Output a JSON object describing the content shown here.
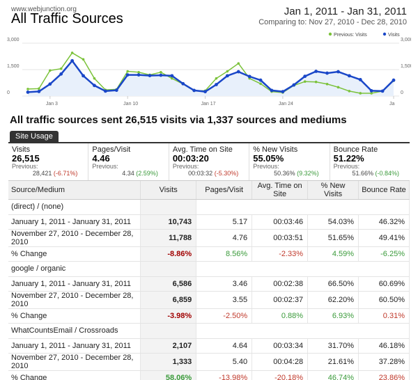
{
  "site": "www.webjunction.org",
  "title": "All Traffic Sources",
  "date_range": "Jan 1, 2011 - Jan 31, 2011",
  "compare": "Comparing to: Nov 27, 2010 - Dec 28, 2010",
  "colors": {
    "current": "#1a47c8",
    "previous": "#7bc23a",
    "negative": "#c0392b",
    "positive": "#3a9a3a"
  },
  "headline": "All traffic sources sent 26,515 visits via 1,337 sources and mediums",
  "tab": "Site Usage",
  "summary": [
    {
      "label": "Visits",
      "value": "26,515",
      "prev_label": "Previous:",
      "prev_value": "28,421",
      "change": "(-6.71%)",
      "change_sign": "neg"
    },
    {
      "label": "Pages/Visit",
      "value": "4.46",
      "prev_label": "Previous:",
      "prev_value": "4.34",
      "change": "(2.59%)",
      "change_sign": "pos"
    },
    {
      "label": "Avg. Time on Site",
      "value": "00:03:20",
      "prev_label": "Previous:",
      "prev_value": "00:03:32",
      "change": "(-5.30%)",
      "change_sign": "neg"
    },
    {
      "label": "% New Visits",
      "value": "55.05%",
      "prev_label": "Previous:",
      "prev_value": "50.36%",
      "change": "(9.32%)",
      "change_sign": "pos"
    },
    {
      "label": "Bounce Rate",
      "value": "51.22%",
      "prev_label": "Previous:",
      "prev_value": "51.66%",
      "change": "(-0.84%)",
      "change_sign": "pos"
    }
  ],
  "table": {
    "headers": [
      "Source/Medium",
      "Visits",
      "Pages/Visit",
      "Avg. Time on Site",
      "% New Visits",
      "Bounce Rate"
    ],
    "groups": [
      {
        "name": "(direct) / (none)",
        "rows": [
          [
            "January 1, 2011 - January 31, 2011",
            "10,743",
            "5.17",
            "00:03:46",
            "54.03%",
            "46.32%"
          ],
          [
            "November 27, 2010 - December 28, 2010",
            "11,788",
            "4.76",
            "00:03:51",
            "51.65%",
            "49.41%"
          ],
          [
            "% Change",
            "-8.86%",
            "8.56%",
            "-2.33%",
            "4.59%",
            "-6.25%"
          ]
        ]
      },
      {
        "name": "google / organic",
        "rows": [
          [
            "January 1, 2011 - January 31, 2011",
            "6,586",
            "3.46",
            "00:02:38",
            "66.50%",
            "60.69%"
          ],
          [
            "November 27, 2010 - December 28, 2010",
            "6,859",
            "3.55",
            "00:02:37",
            "62.20%",
            "60.50%"
          ],
          [
            "% Change",
            "-3.98%",
            "-2.50%",
            "0.88%",
            "6.93%",
            "0.31%"
          ]
        ]
      },
      {
        "name": "WhatCountsEmail / Crossroads",
        "rows": [
          [
            "January 1, 2011 - January 31, 2011",
            "2,107",
            "4.64",
            "00:03:34",
            "31.70%",
            "46.18%"
          ],
          [
            "November 27, 2010 - December 28, 2010",
            "1,333",
            "5.40",
            "00:04:28",
            "21.61%",
            "37.28%"
          ],
          [
            "% Change",
            "58.06%",
            "-13.98%",
            "-20.18%",
            "46.74%",
            "23.86%"
          ]
        ]
      }
    ]
  },
  "chart_data": {
    "type": "line",
    "legend": [
      "Previous: Visits",
      "Visits"
    ],
    "legend_position": "top-right",
    "y_ticks": [
      "3,000",
      "1,500",
      "0"
    ],
    "x_ticks": [
      "Jan 3",
      "Jan 10",
      "Jan 17",
      "Jan 24",
      "Ja"
    ],
    "ylim": [
      0,
      3000
    ],
    "series": [
      {
        "name": "Visits",
        "values": [
          220,
          260,
          680,
          1250,
          2000,
          1150,
          600,
          280,
          330,
          1200,
          1200,
          1160,
          1180,
          1150,
          700,
          320,
          250,
          650,
          1150,
          1380,
          1110,
          900,
          320,
          250,
          630,
          1120,
          1400,
          1300,
          1380,
          1150,
          930,
          300,
          280,
          900
        ]
      },
      {
        "name": "Previous: Visits",
        "values": [
          400,
          420,
          1450,
          1550,
          2450,
          2080,
          1000,
          350,
          380,
          1400,
          1350,
          1200,
          1350,
          1000,
          680,
          300,
          300,
          1000,
          1400,
          1850,
          1000,
          700,
          250,
          200,
          600,
          820,
          800,
          680,
          500,
          280,
          160,
          160,
          280,
          870
        ]
      }
    ]
  }
}
